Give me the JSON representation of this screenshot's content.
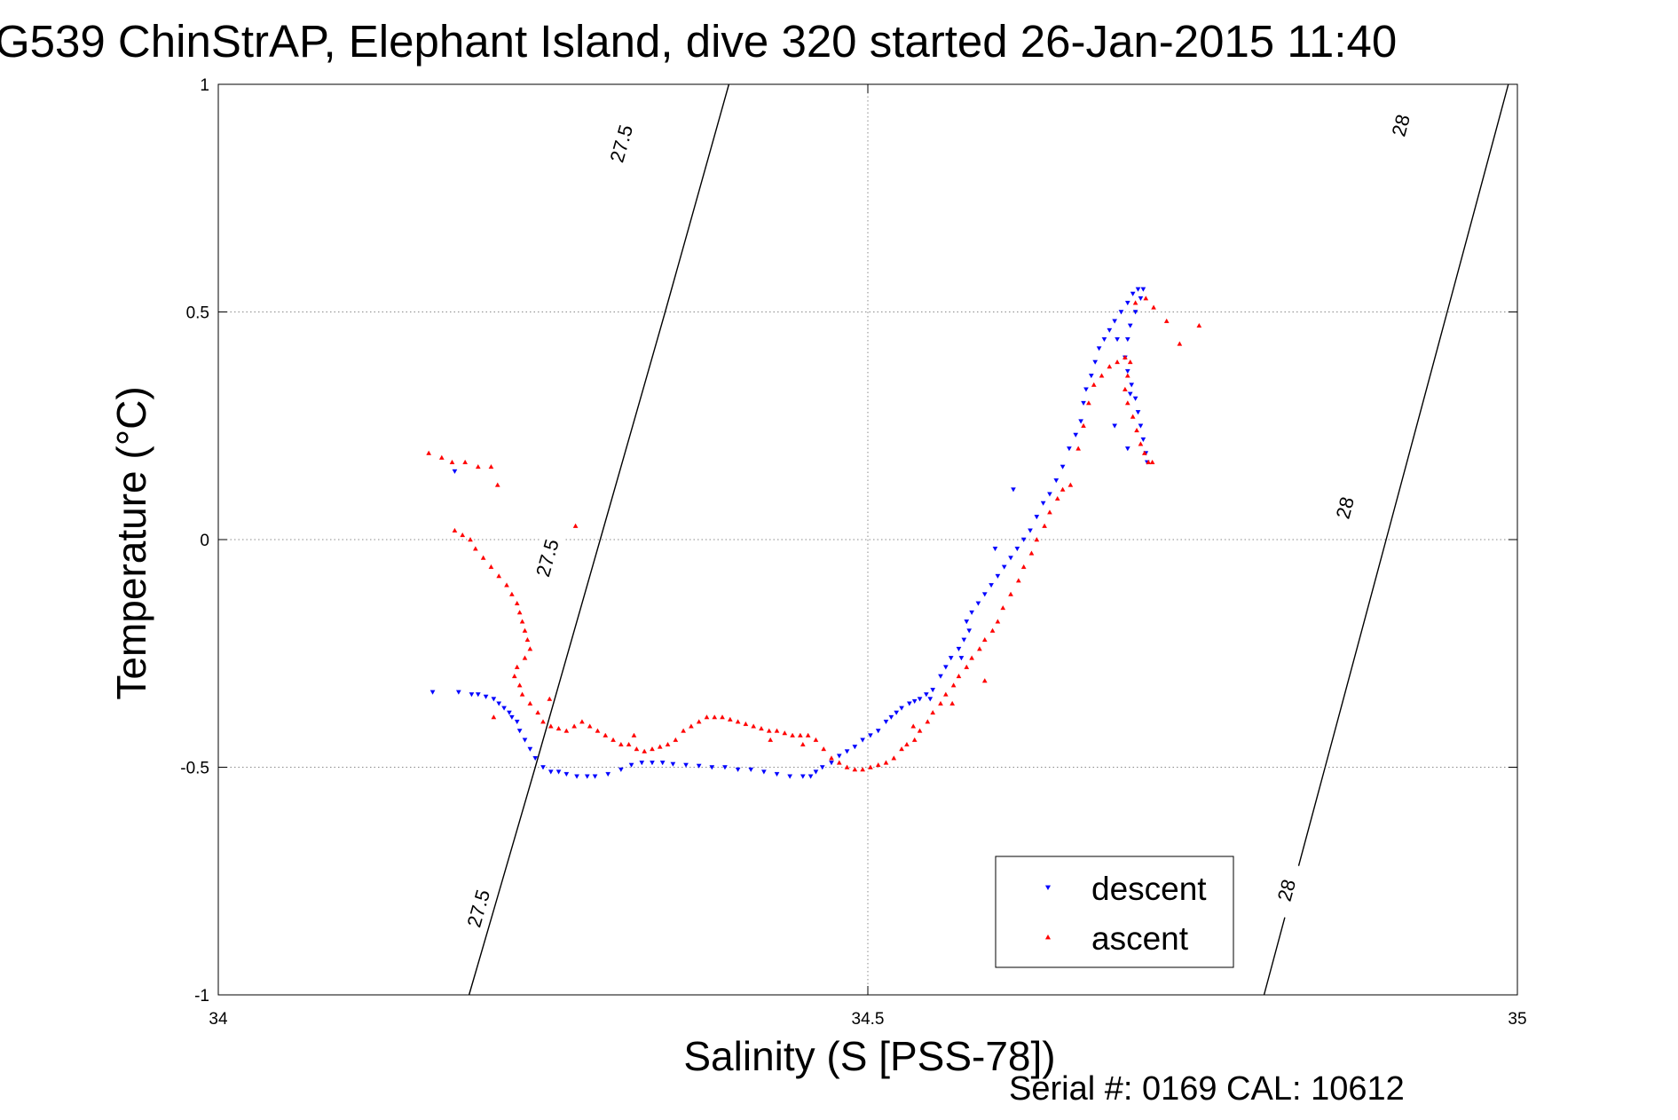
{
  "chart_data": {
    "type": "scatter",
    "title": "G539 ChinStrAP, Elephant Island, dive 320 started 26-Jan-2015 11:40",
    "xlabel": "Salinity (S [PSS-78])",
    "ylabel": "Temperature (°C)",
    "xlim": [
      34,
      35
    ],
    "ylim": [
      -1,
      1
    ],
    "x_ticks": [
      {
        "value": 34,
        "label": "34"
      },
      {
        "value": 34.5,
        "label": "34.5"
      },
      {
        "value": 35,
        "label": "35"
      }
    ],
    "y_ticks": [
      {
        "value": 1,
        "label": "1"
      },
      {
        "value": 0.5,
        "label": "0.5"
      },
      {
        "value": 0,
        "label": "0"
      },
      {
        "value": -0.5,
        "label": "-0.5"
      },
      {
        "value": -1,
        "label": "-1"
      }
    ],
    "grid": true,
    "legend_position": "bottom-right",
    "annotation": "Serial #: 0169 CAL: 10612",
    "contours": [
      {
        "label": "27.5",
        "points": [
          [
            34.193,
            -1.0
          ],
          [
            34.244,
            -0.5
          ],
          [
            34.294,
            0.0
          ],
          [
            34.344,
            0.5
          ],
          [
            34.393,
            1.0
          ]
        ],
        "label_positions": [
          [
            34.2,
            -0.81
          ],
          [
            34.253,
            -0.04
          ],
          [
            34.31,
            0.87
          ]
        ]
      },
      {
        "label": "28",
        "points": [
          [
            34.805,
            -1.0
          ],
          [
            34.852,
            -0.5
          ],
          [
            34.899,
            0.0
          ],
          [
            34.946,
            0.5
          ],
          [
            34.993,
            1.0
          ]
        ],
        "label_positions": [
          [
            34.822,
            -0.77
          ],
          [
            34.867,
            0.07
          ],
          [
            34.91,
            0.91
          ]
        ]
      }
    ],
    "series": [
      {
        "name": "descent",
        "color": "#0000ff",
        "marker": "triangle-down",
        "points": [
          [
            34.165,
            -0.335
          ],
          [
            34.185,
            -0.335
          ],
          [
            34.195,
            -0.34
          ],
          [
            34.2,
            -0.34
          ],
          [
            34.206,
            -0.345
          ],
          [
            34.212,
            -0.35
          ],
          [
            34.216,
            -0.36
          ],
          [
            34.22,
            -0.37
          ],
          [
            34.224,
            -0.38
          ],
          [
            34.226,
            -0.39
          ],
          [
            34.23,
            -0.4
          ],
          [
            34.232,
            -0.42
          ],
          [
            34.236,
            -0.44
          ],
          [
            34.24,
            -0.46
          ],
          [
            34.244,
            -0.48
          ],
          [
            34.25,
            -0.5
          ],
          [
            34.256,
            -0.51
          ],
          [
            34.262,
            -0.51
          ],
          [
            34.268,
            -0.515
          ],
          [
            34.276,
            -0.52
          ],
          [
            34.284,
            -0.52
          ],
          [
            34.29,
            -0.52
          ],
          [
            34.3,
            -0.515
          ],
          [
            34.31,
            -0.505
          ],
          [
            34.318,
            -0.495
          ],
          [
            34.326,
            -0.49
          ],
          [
            34.334,
            -0.49
          ],
          [
            34.342,
            -0.49
          ],
          [
            34.35,
            -0.493
          ],
          [
            34.36,
            -0.495
          ],
          [
            34.37,
            -0.497
          ],
          [
            34.38,
            -0.5
          ],
          [
            34.39,
            -0.5
          ],
          [
            34.4,
            -0.505
          ],
          [
            34.41,
            -0.505
          ],
          [
            34.42,
            -0.51
          ],
          [
            34.43,
            -0.515
          ],
          [
            34.44,
            -0.52
          ],
          [
            34.45,
            -0.52
          ],
          [
            34.456,
            -0.52
          ],
          [
            34.46,
            -0.51
          ],
          [
            34.465,
            -0.5
          ],
          [
            34.472,
            -0.49
          ],
          [
            34.478,
            -0.475
          ],
          [
            34.484,
            -0.465
          ],
          [
            34.49,
            -0.455
          ],
          [
            34.496,
            -0.44
          ],
          [
            34.502,
            -0.43
          ],
          [
            34.508,
            -0.42
          ],
          [
            34.514,
            -0.4
          ],
          [
            34.518,
            -0.39
          ],
          [
            34.522,
            -0.38
          ],
          [
            34.526,
            -0.37
          ],
          [
            34.532,
            -0.36
          ],
          [
            34.536,
            -0.355
          ],
          [
            34.54,
            -0.35
          ],
          [
            34.545,
            -0.34
          ],
          [
            34.55,
            -0.33
          ],
          [
            34.556,
            -0.3
          ],
          [
            34.56,
            -0.28
          ],
          [
            34.564,
            -0.26
          ],
          [
            34.57,
            -0.24
          ],
          [
            34.574,
            -0.22
          ],
          [
            34.578,
            -0.2
          ],
          [
            34.576,
            -0.18
          ],
          [
            34.58,
            -0.16
          ],
          [
            34.585,
            -0.14
          ],
          [
            34.59,
            -0.12
          ],
          [
            34.595,
            -0.1
          ],
          [
            34.6,
            -0.08
          ],
          [
            34.605,
            -0.06
          ],
          [
            34.61,
            -0.04
          ],
          [
            34.615,
            -0.02
          ],
          [
            34.62,
            0.0
          ],
          [
            34.625,
            0.02
          ],
          [
            34.63,
            0.05
          ],
          [
            34.635,
            0.08
          ],
          [
            34.64,
            0.1
          ],
          [
            34.645,
            0.13
          ],
          [
            34.65,
            0.16
          ],
          [
            34.655,
            0.2
          ],
          [
            34.66,
            0.23
          ],
          [
            34.664,
            0.26
          ],
          [
            34.666,
            0.3
          ],
          [
            34.668,
            0.33
          ],
          [
            34.672,
            0.36
          ],
          [
            34.675,
            0.39
          ],
          [
            34.678,
            0.42
          ],
          [
            34.682,
            0.44
          ],
          [
            34.686,
            0.46
          ],
          [
            34.69,
            0.48
          ],
          [
            34.695,
            0.5
          ],
          [
            34.7,
            0.52
          ],
          [
            34.704,
            0.54
          ],
          [
            34.708,
            0.55
          ],
          [
            34.712,
            0.55
          ],
          [
            34.71,
            0.53
          ],
          [
            34.706,
            0.5
          ],
          [
            34.702,
            0.47
          ],
          [
            34.7,
            0.44
          ],
          [
            34.698,
            0.4
          ],
          [
            34.7,
            0.37
          ],
          [
            34.703,
            0.34
          ],
          [
            34.706,
            0.31
          ],
          [
            34.708,
            0.28
          ],
          [
            34.71,
            0.25
          ],
          [
            34.712,
            0.22
          ],
          [
            34.714,
            0.19
          ],
          [
            34.715,
            0.17
          ],
          [
            34.7,
            0.2
          ],
          [
            34.69,
            0.25
          ],
          [
            34.702,
            0.32
          ],
          [
            34.692,
            0.44
          ],
          [
            34.612,
            0.11
          ],
          [
            34.598,
            -0.02
          ],
          [
            34.572,
            -0.26
          ],
          [
            34.548,
            -0.35
          ],
          [
            34.182,
            0.15
          ]
        ]
      },
      {
        "name": "ascent",
        "color": "#ff0000",
        "marker": "triangle-up",
        "points": [
          [
            34.162,
            0.19
          ],
          [
            34.172,
            0.18
          ],
          [
            34.18,
            0.17
          ],
          [
            34.19,
            0.17
          ],
          [
            34.2,
            0.16
          ],
          [
            34.21,
            0.16
          ],
          [
            34.215,
            0.12
          ],
          [
            34.275,
            0.03
          ],
          [
            34.182,
            0.02
          ],
          [
            34.188,
            0.01
          ],
          [
            34.194,
            0.0
          ],
          [
            34.198,
            -0.02
          ],
          [
            34.204,
            -0.04
          ],
          [
            34.21,
            -0.06
          ],
          [
            34.216,
            -0.08
          ],
          [
            34.222,
            -0.1
          ],
          [
            34.226,
            -0.12
          ],
          [
            34.23,
            -0.14
          ],
          [
            34.232,
            -0.16
          ],
          [
            34.234,
            -0.18
          ],
          [
            34.236,
            -0.2
          ],
          [
            34.238,
            -0.22
          ],
          [
            34.24,
            -0.24
          ],
          [
            34.236,
            -0.26
          ],
          [
            34.23,
            -0.28
          ],
          [
            34.228,
            -0.3
          ],
          [
            34.232,
            -0.32
          ],
          [
            34.234,
            -0.34
          ],
          [
            34.24,
            -0.36
          ],
          [
            34.246,
            -0.38
          ],
          [
            34.25,
            -0.4
          ],
          [
            34.256,
            -0.41
          ],
          [
            34.262,
            -0.415
          ],
          [
            34.268,
            -0.42
          ],
          [
            34.274,
            -0.41
          ],
          [
            34.28,
            -0.4
          ],
          [
            34.286,
            -0.41
          ],
          [
            34.292,
            -0.42
          ],
          [
            34.298,
            -0.43
          ],
          [
            34.304,
            -0.44
          ],
          [
            34.31,
            -0.45
          ],
          [
            34.316,
            -0.45
          ],
          [
            34.322,
            -0.46
          ],
          [
            34.328,
            -0.465
          ],
          [
            34.334,
            -0.46
          ],
          [
            34.34,
            -0.455
          ],
          [
            34.346,
            -0.45
          ],
          [
            34.352,
            -0.44
          ],
          [
            34.358,
            -0.42
          ],
          [
            34.364,
            -0.41
          ],
          [
            34.37,
            -0.4
          ],
          [
            34.376,
            -0.39
          ],
          [
            34.382,
            -0.39
          ],
          [
            34.388,
            -0.39
          ],
          [
            34.394,
            -0.395
          ],
          [
            34.4,
            -0.4
          ],
          [
            34.406,
            -0.405
          ],
          [
            34.412,
            -0.41
          ],
          [
            34.418,
            -0.415
          ],
          [
            34.424,
            -0.42
          ],
          [
            34.43,
            -0.42
          ],
          [
            34.436,
            -0.425
          ],
          [
            34.442,
            -0.43
          ],
          [
            34.448,
            -0.43
          ],
          [
            34.454,
            -0.43
          ],
          [
            34.46,
            -0.44
          ],
          [
            34.466,
            -0.46
          ],
          [
            34.472,
            -0.48
          ],
          [
            34.478,
            -0.49
          ],
          [
            34.484,
            -0.5
          ],
          [
            34.49,
            -0.505
          ],
          [
            34.496,
            -0.505
          ],
          [
            34.502,
            -0.5
          ],
          [
            34.508,
            -0.495
          ],
          [
            34.514,
            -0.49
          ],
          [
            34.52,
            -0.48
          ],
          [
            34.526,
            -0.46
          ],
          [
            34.53,
            -0.45
          ],
          [
            34.536,
            -0.44
          ],
          [
            34.54,
            -0.42
          ],
          [
            34.546,
            -0.4
          ],
          [
            34.55,
            -0.38
          ],
          [
            34.556,
            -0.36
          ],
          [
            34.56,
            -0.34
          ],
          [
            34.566,
            -0.32
          ],
          [
            34.57,
            -0.3
          ],
          [
            34.576,
            -0.28
          ],
          [
            34.58,
            -0.26
          ],
          [
            34.586,
            -0.24
          ],
          [
            34.59,
            -0.22
          ],
          [
            34.596,
            -0.2
          ],
          [
            34.6,
            -0.18
          ],
          [
            34.604,
            -0.15
          ],
          [
            34.61,
            -0.12
          ],
          [
            34.616,
            -0.09
          ],
          [
            34.62,
            -0.06
          ],
          [
            34.626,
            -0.03
          ],
          [
            34.63,
            0.0
          ],
          [
            34.636,
            0.03
          ],
          [
            34.64,
            0.06
          ],
          [
            34.646,
            0.09
          ],
          [
            34.65,
            0.11
          ],
          [
            34.656,
            0.12
          ],
          [
            34.662,
            0.2
          ],
          [
            34.666,
            0.25
          ],
          [
            34.67,
            0.3
          ],
          [
            34.674,
            0.34
          ],
          [
            34.68,
            0.36
          ],
          [
            34.686,
            0.38
          ],
          [
            34.692,
            0.39
          ],
          [
            34.698,
            0.4
          ],
          [
            34.702,
            0.39
          ],
          [
            34.7,
            0.36
          ],
          [
            34.698,
            0.33
          ],
          [
            34.7,
            0.3
          ],
          [
            34.704,
            0.27
          ],
          [
            34.707,
            0.24
          ],
          [
            34.71,
            0.21
          ],
          [
            34.713,
            0.19
          ],
          [
            34.716,
            0.17
          ],
          [
            34.719,
            0.17
          ],
          [
            34.706,
            0.52
          ],
          [
            34.714,
            0.53
          ],
          [
            34.72,
            0.51
          ],
          [
            34.73,
            0.48
          ],
          [
            34.74,
            0.43
          ],
          [
            34.755,
            0.47
          ],
          [
            34.255,
            -0.35
          ],
          [
            34.212,
            -0.39
          ],
          [
            34.32,
            -0.43
          ],
          [
            34.425,
            -0.44
          ],
          [
            34.45,
            -0.45
          ],
          [
            34.535,
            -0.41
          ],
          [
            34.565,
            -0.36
          ],
          [
            34.59,
            -0.31
          ]
        ]
      }
    ]
  }
}
